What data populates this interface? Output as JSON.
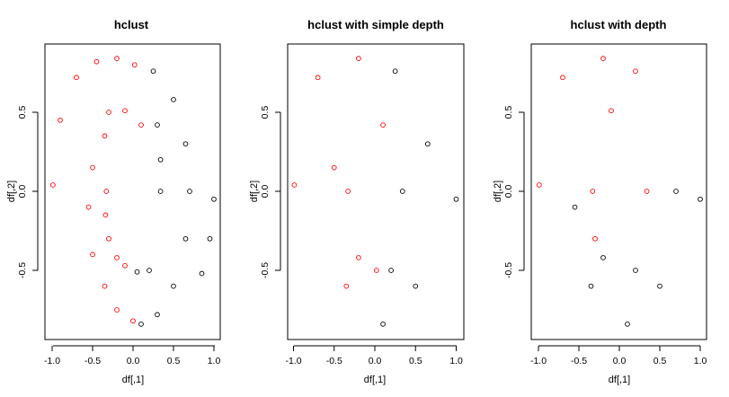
{
  "colors": {
    "cluster1": "#ff0000",
    "cluster2": "#000000"
  },
  "chart_data": [
    {
      "type": "scatter",
      "title": "hclust",
      "xlabel": "df[,1]",
      "ylabel": "df[,2]",
      "xlim": [
        -1.05,
        1.05
      ],
      "ylim": [
        -0.9,
        0.9
      ],
      "xticks": [
        "-1.0",
        "-0.5",
        "0.0",
        "0.5",
        "1.0"
      ],
      "yticks": [
        "-0.5",
        "0.0",
        "0.5"
      ],
      "series": [
        {
          "color": "#ff0000",
          "points": [
            [
              -0.99,
              0.04
            ],
            [
              -0.9,
              0.45
            ],
            [
              -0.7,
              0.72
            ],
            [
              -0.45,
              0.82
            ],
            [
              -0.2,
              0.84
            ],
            [
              0.02,
              0.8
            ],
            [
              -0.3,
              0.5
            ],
            [
              -0.1,
              0.51
            ],
            [
              0.1,
              0.42
            ],
            [
              -0.35,
              0.35
            ],
            [
              -0.5,
              0.15
            ],
            [
              -0.55,
              -0.1
            ],
            [
              -0.5,
              -0.4
            ],
            [
              -0.35,
              -0.6
            ],
            [
              -0.2,
              -0.75
            ],
            [
              0.0,
              -0.82
            ],
            [
              -0.33,
              0.0
            ],
            [
              -0.34,
              -0.15
            ],
            [
              -0.3,
              -0.3
            ],
            [
              -0.2,
              -0.42
            ],
            [
              -0.1,
              -0.47
            ]
          ]
        },
        {
          "color": "#000000",
          "points": [
            [
              0.25,
              0.76
            ],
            [
              0.5,
              0.58
            ],
            [
              0.65,
              0.3
            ],
            [
              0.7,
              0.0
            ],
            [
              0.65,
              -0.3
            ],
            [
              0.5,
              -0.6
            ],
            [
              0.3,
              -0.78
            ],
            [
              0.1,
              -0.84
            ],
            [
              1.0,
              -0.05
            ],
            [
              0.95,
              -0.3
            ],
            [
              0.85,
              -0.52
            ],
            [
              0.3,
              0.42
            ],
            [
              0.34,
              0.2
            ],
            [
              0.34,
              0.0
            ],
            [
              0.05,
              -0.51
            ],
            [
              0.2,
              -0.5
            ]
          ]
        }
      ]
    },
    {
      "type": "scatter",
      "title": "hclust with simple depth",
      "xlabel": "df[,1]",
      "ylabel": "df[,2]",
      "xlim": [
        -1.05,
        1.05
      ],
      "ylim": [
        -0.9,
        0.9
      ],
      "xticks": [
        "-1.0",
        "-0.5",
        "0.0",
        "0.5",
        "1.0"
      ],
      "yticks": [
        "-0.5",
        "0.0",
        "0.5"
      ],
      "series": [
        {
          "color": "#ff0000",
          "points": [
            [
              -0.99,
              0.04
            ],
            [
              -0.7,
              0.72
            ],
            [
              -0.2,
              0.84
            ],
            [
              0.1,
              0.42
            ],
            [
              -0.5,
              0.15
            ],
            [
              -0.35,
              -0.6
            ],
            [
              -0.33,
              0.0
            ],
            [
              -0.2,
              -0.42
            ],
            [
              0.02,
              -0.5
            ]
          ]
        },
        {
          "color": "#000000",
          "points": [
            [
              0.25,
              0.76
            ],
            [
              0.65,
              0.3
            ],
            [
              0.5,
              -0.6
            ],
            [
              0.1,
              -0.84
            ],
            [
              1.0,
              -0.05
            ],
            [
              0.34,
              0.0
            ],
            [
              0.2,
              -0.5
            ]
          ]
        }
      ]
    },
    {
      "type": "scatter",
      "title": "hclust with depth",
      "xlabel": "df[,1]",
      "ylabel": "df[,2]",
      "xlim": [
        -1.05,
        1.05
      ],
      "ylim": [
        -0.9,
        0.9
      ],
      "xticks": [
        "-1.0",
        "-0.5",
        "0.0",
        "0.5",
        "1.0"
      ],
      "yticks": [
        "-0.5",
        "0.0",
        "0.5"
      ],
      "series": [
        {
          "color": "#ff0000",
          "points": [
            [
              -0.99,
              0.04
            ],
            [
              -0.7,
              0.72
            ],
            [
              -0.2,
              0.84
            ],
            [
              0.2,
              0.76
            ],
            [
              0.34,
              0.0
            ],
            [
              -0.1,
              0.51
            ],
            [
              -0.33,
              0.0
            ],
            [
              -0.3,
              -0.3
            ]
          ]
        },
        {
          "color": "#000000",
          "points": [
            [
              -0.55,
              -0.1
            ],
            [
              -0.35,
              -0.6
            ],
            [
              0.1,
              -0.84
            ],
            [
              0.5,
              -0.6
            ],
            [
              0.7,
              0.0
            ],
            [
              1.0,
              -0.05
            ],
            [
              -0.2,
              -0.42
            ],
            [
              0.2,
              -0.5
            ]
          ]
        }
      ]
    }
  ]
}
